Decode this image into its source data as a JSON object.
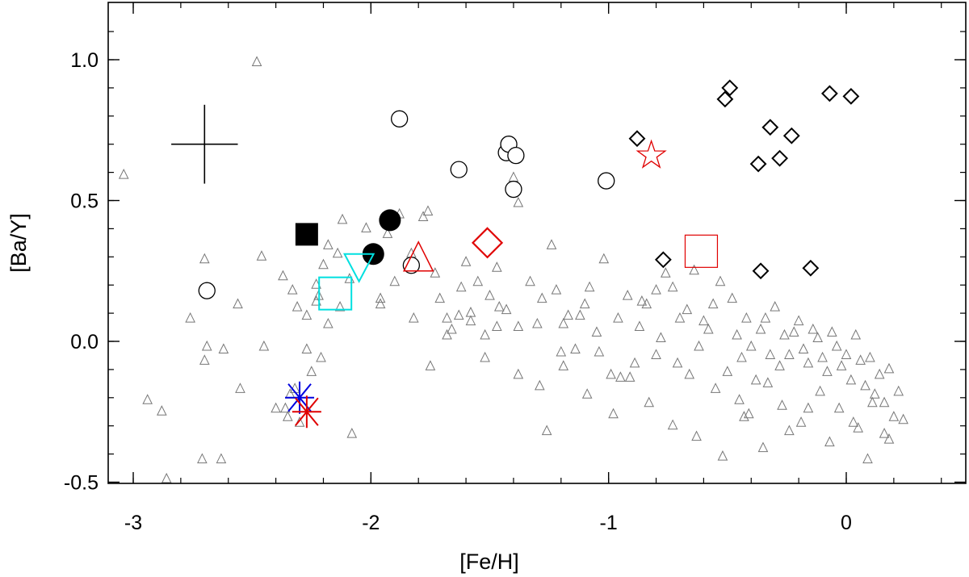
{
  "chart_data": {
    "type": "scatter",
    "title": "",
    "xlabel": "[Fe/H]",
    "ylabel": "[Ba/Y]",
    "xlim": [
      -3.1,
      0.5
    ],
    "ylim": [
      -0.5,
      1.2
    ],
    "grid": false,
    "xticks": [
      {
        "value": -3,
        "label": "-3"
      },
      {
        "value": -2,
        "label": "-2"
      },
      {
        "value": -1,
        "label": "-1"
      },
      {
        "value": 0,
        "label": "0"
      }
    ],
    "yticks": [
      {
        "value": -0.5,
        "label": "-0.5"
      },
      {
        "value": 0.0,
        "label": "0.0"
      },
      {
        "value": 0.5,
        "label": "0.5"
      },
      {
        "value": 1.0,
        "label": "1.0"
      }
    ],
    "error_bar": {
      "x": -2.7,
      "y": 0.7,
      "xerr": 0.14,
      "yerr": 0.14
    },
    "series": [
      {
        "name": "open-circles",
        "marker": "circle-open",
        "color": "#000000",
        "x": [
          -1.88,
          -1.63,
          -1.43,
          -1.42,
          -1.39,
          -1.4,
          -1.01,
          -2.69,
          -1.83
        ],
        "y": [
          0.79,
          0.61,
          0.67,
          0.7,
          0.66,
          0.54,
          0.57,
          0.18,
          0.27
        ]
      },
      {
        "name": "filled-circles",
        "marker": "circle-filled",
        "color": "#000000",
        "x": [
          -1.92,
          -1.99
        ],
        "y": [
          0.43,
          0.31
        ]
      },
      {
        "name": "filled-square",
        "marker": "square-filled",
        "color": "#000000",
        "x": [
          -2.27
        ],
        "y": [
          0.38
        ]
      },
      {
        "name": "open-diamonds",
        "marker": "diamond",
        "color": "#000000",
        "x": [
          -0.49,
          -0.51,
          -0.32,
          -0.23,
          -0.37,
          -0.28,
          -0.07,
          0.02,
          -0.88,
          -0.77,
          -0.36,
          -0.15
        ],
        "y": [
          0.9,
          0.86,
          0.76,
          0.73,
          0.63,
          0.65,
          0.88,
          0.87,
          0.72,
          0.29,
          0.25,
          0.26
        ]
      },
      {
        "name": "cyan-triangle-down",
        "marker": "triangle-down",
        "color": "#00e0e0",
        "x": [
          -2.05
        ],
        "y": [
          0.27
        ]
      },
      {
        "name": "cyan-square",
        "marker": "square-open",
        "color": "#00e0e0",
        "x": [
          -2.15
        ],
        "y": [
          0.17
        ]
      },
      {
        "name": "red-triangle",
        "marker": "triangle-up",
        "color": "#e00000",
        "x": [
          -1.8
        ],
        "y": [
          0.29
        ]
      },
      {
        "name": "red-diamond",
        "marker": "diamond-big",
        "color": "#e00000",
        "x": [
          -1.51
        ],
        "y": [
          0.35
        ]
      },
      {
        "name": "red-square",
        "marker": "square-open-big",
        "color": "#e00000",
        "x": [
          -0.61
        ],
        "y": [
          0.32
        ]
      },
      {
        "name": "red-star",
        "marker": "star",
        "color": "#e00000",
        "x": [
          -0.82
        ],
        "y": [
          0.66
        ]
      },
      {
        "name": "blue-asterisk",
        "marker": "asterisk",
        "color": "#0000e0",
        "x": [
          -2.3
        ],
        "y": [
          -0.2
        ]
      },
      {
        "name": "red-asterisk",
        "marker": "asterisk",
        "color": "#e00000",
        "x": [
          -2.27
        ],
        "y": [
          -0.25
        ]
      },
      {
        "name": "literature-triangles",
        "marker": "triangle-small",
        "color": "#777777",
        "x": [
          -3.04,
          -2.94,
          -2.88,
          -2.86,
          -2.7,
          -2.7,
          -2.71,
          -2.62,
          -2.69,
          -2.56,
          -2.76,
          -2.63,
          -2.48,
          -2.46,
          -2.37,
          -2.4,
          -2.33,
          -2.31,
          -2.27,
          -2.22,
          -2.18,
          -2.12,
          -2.14,
          -2.18,
          -2.2,
          -2.23,
          -2.23,
          -2.27,
          -2.32,
          -2.34,
          -2.45,
          -2.55,
          -2.35,
          -2.36,
          -2.3,
          -2.25,
          -2.21,
          -2.13,
          -2.09,
          -2.08,
          -2.02,
          -1.96,
          -1.93,
          -1.88,
          -1.83,
          -1.78,
          -1.76,
          -1.73,
          -1.71,
          -1.68,
          -1.66,
          -1.63,
          -1.62,
          -1.6,
          -1.55,
          -1.52,
          -1.5,
          -1.47,
          -1.43,
          -1.4,
          -1.38,
          -1.33,
          -1.28,
          -1.26,
          -1.24,
          -1.22,
          -1.19,
          -1.17,
          -1.14,
          -1.1,
          -1.08,
          -1.04,
          -1.02,
          -0.99,
          -0.96,
          -0.92,
          -0.89,
          -0.87,
          -0.84,
          -0.8,
          -0.78,
          -0.76,
          -0.73,
          -0.7,
          -0.67,
          -0.64,
          -0.62,
          -0.6,
          -0.58,
          -0.56,
          -0.53,
          -0.5,
          -0.48,
          -0.46,
          -0.44,
          -0.42,
          -0.4,
          -0.38,
          -0.36,
          -0.34,
          -0.32,
          -0.3,
          -0.28,
          -0.26,
          -0.24,
          -0.22,
          -0.2,
          -0.18,
          -0.16,
          -0.14,
          -0.12,
          -0.1,
          -0.08,
          -0.06,
          -0.04,
          -0.02,
          0.0,
          0.02,
          0.04,
          0.06,
          0.08,
          0.1,
          0.12,
          0.14,
          0.16,
          0.18,
          0.2,
          0.22,
          -1.96,
          -1.9,
          -1.82,
          -1.75,
          -1.68,
          -1.58,
          -1.52,
          -1.46,
          -1.38,
          -1.3,
          -1.2,
          -1.12,
          -1.05,
          -0.95,
          -0.86,
          -0.8,
          -0.71,
          -0.66,
          -0.55,
          -0.45,
          -0.41,
          -0.33,
          -0.27,
          -0.19,
          -0.11,
          -0.03,
          0.05,
          0.11,
          0.18,
          0.24,
          -1.58,
          -1.47,
          -1.38,
          -1.29,
          -1.19,
          -1.09,
          -0.98,
          -0.91,
          -0.83,
          -0.73,
          -0.63,
          -0.52,
          -0.43,
          -0.35,
          -0.24,
          -0.16,
          -0.07,
          0.03,
          0.09,
          0.16
        ],
        "y": [
          0.59,
          -0.21,
          -0.25,
          -0.49,
          0.29,
          -0.07,
          -0.42,
          -0.03,
          -0.02,
          0.13,
          0.08,
          -0.42,
          0.99,
          0.3,
          0.23,
          -0.24,
          0.18,
          0.12,
          -0.03,
          0.16,
          0.06,
          0.43,
          0.31,
          0.34,
          0.27,
          0.2,
          0.14,
          0.09,
          -0.17,
          -0.19,
          -0.02,
          -0.17,
          -0.27,
          -0.24,
          -0.29,
          -0.11,
          -0.06,
          0.12,
          0.22,
          -0.33,
          0.4,
          0.13,
          0.38,
          0.45,
          0.31,
          0.44,
          0.46,
          0.24,
          0.15,
          0.08,
          0.04,
          0.09,
          0.19,
          0.28,
          0.21,
          0.02,
          0.16,
          0.26,
          0.11,
          0.58,
          0.49,
          0.21,
          0.15,
          -0.32,
          0.34,
          0.18,
          0.06,
          0.09,
          -0.03,
          0.13,
          0.19,
          -0.04,
          0.29,
          -0.12,
          0.08,
          0.16,
          -0.08,
          0.05,
          0.13,
          -0.05,
          0.01,
          0.24,
          0.19,
          0.08,
          0.11,
          0.25,
          -0.02,
          0.07,
          0.04,
          0.13,
          0.21,
          -0.11,
          0.15,
          0.02,
          -0.06,
          0.08,
          -0.02,
          -0.14,
          0.04,
          0.08,
          -0.05,
          0.12,
          -0.09,
          0.02,
          -0.05,
          0.03,
          0.07,
          -0.03,
          -0.08,
          0.04,
          0.01,
          -0.06,
          -0.11,
          0.03,
          -0.02,
          -0.09,
          -0.05,
          -0.14,
          0.02,
          -0.07,
          -0.16,
          -0.06,
          -0.19,
          -0.12,
          -0.22,
          -0.1,
          -0.27,
          -0.18,
          0.15,
          0.21,
          0.08,
          -0.09,
          0.02,
          0.07,
          -0.06,
          0.12,
          0.05,
          0.06,
          -0.04,
          0.09,
          0.03,
          -0.13,
          0.14,
          0.18,
          -0.08,
          -0.12,
          -0.17,
          -0.21,
          -0.26,
          -0.15,
          -0.23,
          -0.29,
          -0.18,
          -0.24,
          -0.31,
          -0.22,
          -0.35,
          -0.28,
          0.1,
          0.05,
          -0.12,
          -0.16,
          -0.09,
          -0.19,
          -0.26,
          -0.13,
          -0.22,
          -0.3,
          -0.34,
          -0.41,
          -0.27,
          -0.38,
          -0.32,
          -0.24,
          -0.36,
          -0.29,
          -0.42,
          -0.33
        ]
      }
    ]
  }
}
